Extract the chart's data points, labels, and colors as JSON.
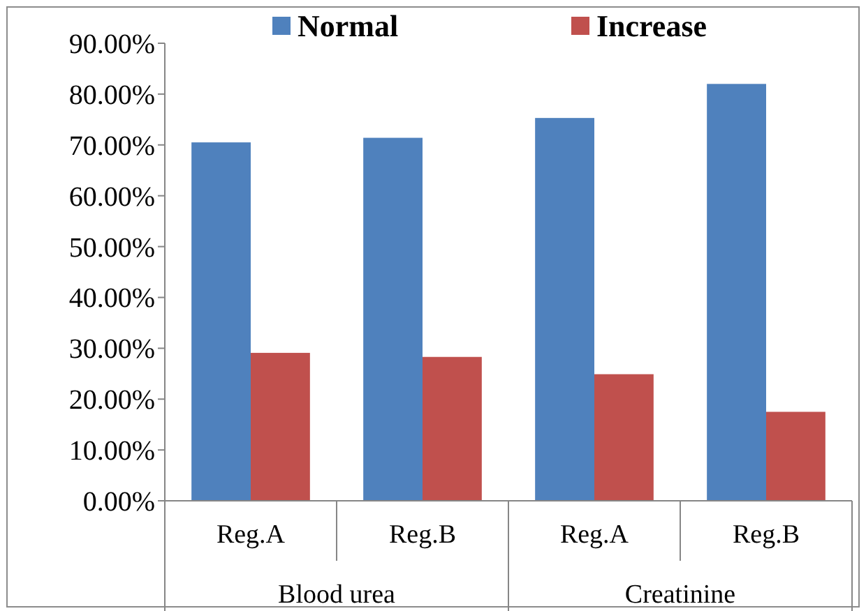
{
  "chart_data": {
    "type": "bar",
    "categories": [
      "Reg.A",
      "Reg.B",
      "Reg.A",
      "Reg.B"
    ],
    "series": [
      {
        "name": "Normal",
        "color": "#4f81bd",
        "values": [
          70.5,
          71.4,
          75.3,
          82.0
        ]
      },
      {
        "name": "Increase",
        "color": "#c0504d",
        "values": [
          29.1,
          28.3,
          24.9,
          17.5
        ]
      }
    ],
    "ylim": [
      0,
      90
    ],
    "yticks": [
      {
        "value": 0,
        "label": "0.00%"
      },
      {
        "value": 10,
        "label": "10.00%"
      },
      {
        "value": 20,
        "label": "20.00%"
      },
      {
        "value": 30,
        "label": "30.00%"
      },
      {
        "value": 40,
        "label": "40.00%"
      },
      {
        "value": 50,
        "label": "50.00%"
      },
      {
        "value": 60,
        "label": "60.00%"
      },
      {
        "value": 70,
        "label": "70.00%"
      },
      {
        "value": 80,
        "label": "80.00%"
      },
      {
        "value": 90,
        "label": "90.00%"
      }
    ],
    "annotations": [
      "Blood urea",
      "Creatinine"
    ],
    "grid": false,
    "legend": "top"
  }
}
